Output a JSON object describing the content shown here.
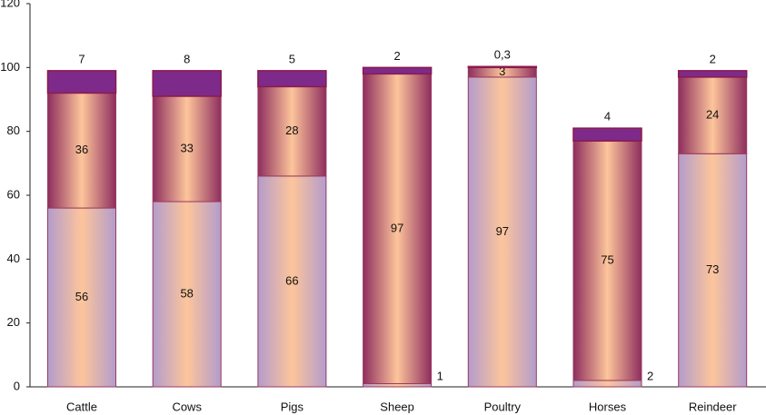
{
  "chart_data": {
    "type": "bar",
    "stacked": true,
    "categories": [
      "Cattle",
      "Cows",
      "Pigs",
      "Sheep",
      "Poultry",
      "Horses",
      "Reindeer"
    ],
    "series": [
      {
        "color": "#b39ccc",
        "values": [
          56,
          58,
          66,
          1,
          97,
          2,
          73
        ]
      },
      {
        "color": "#8e2e5e",
        "values": [
          36,
          33,
          28,
          97,
          3,
          75,
          24
        ]
      },
      {
        "color": "#7e2a8a",
        "values": [
          7,
          8,
          5,
          2,
          0.3,
          4,
          2
        ],
        "value_labels": [
          "7",
          "8",
          "5",
          "2",
          "0,3",
          "4",
          "2"
        ]
      }
    ],
    "ylim": [
      0,
      120
    ],
    "yticks": [
      0,
      20,
      40,
      60,
      80,
      100,
      120
    ],
    "grid": false
  }
}
